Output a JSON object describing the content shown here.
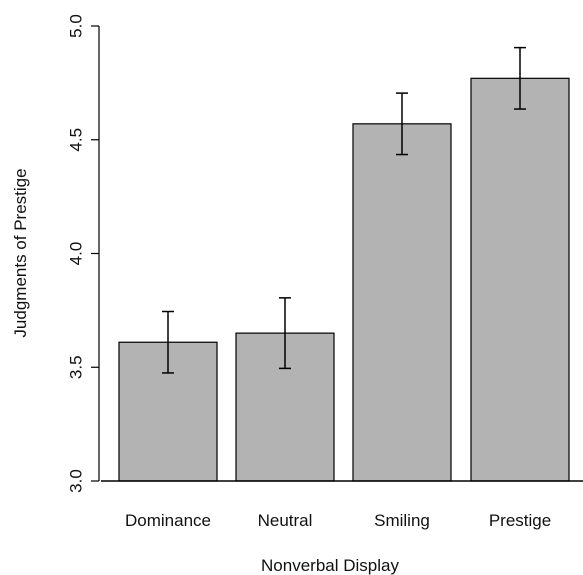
{
  "chart_data": {
    "type": "bar",
    "title": "",
    "xlabel": "Nonverbal Display",
    "ylabel": "Judgments of Prestige",
    "categories": [
      "Dominance",
      "Neutral",
      "Smiling",
      "Prestige"
    ],
    "values": [
      3.61,
      3.65,
      4.57,
      4.77
    ],
    "error_low": [
      3.475,
      3.495,
      4.435,
      4.635
    ],
    "error_high": [
      3.745,
      3.805,
      4.705,
      4.905
    ],
    "ylim": [
      3.0,
      5.0
    ],
    "yticks": [
      "3.0",
      "3.5",
      "4.0",
      "4.5",
      "5.0"
    ],
    "grid": false,
    "colors": {
      "bar_fill": "#b3b3b3",
      "bar_stroke": "#000000",
      "axis": "#000000"
    }
  }
}
